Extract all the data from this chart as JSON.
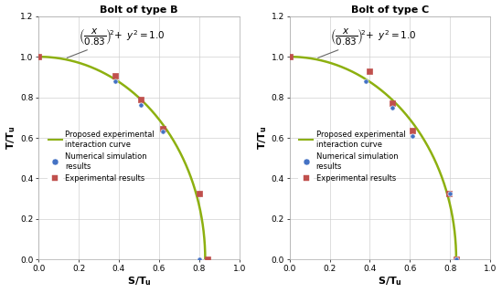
{
  "title_B": "Bolt of type B",
  "title_C": "Bolt of type C",
  "xlabel": "S/T$_\\mathbf{u}$",
  "ylabel": "T/T$_\\mathbf{u}$",
  "equation_param": 0.83,
  "xlim": [
    0,
    1.0
  ],
  "ylim": [
    0,
    1.2
  ],
  "xticks": [
    0,
    0.2,
    0.4,
    0.6,
    0.8,
    1.0
  ],
  "yticks": [
    0,
    0.2,
    0.4,
    0.6,
    0.8,
    1.0,
    1.2
  ],
  "curve_color": "#8db010",
  "numerical_color": "#4472C4",
  "experimental_color": "#C0504D",
  "numerical_B": [
    [
      0.38,
      0.88
    ],
    [
      0.51,
      0.76
    ],
    [
      0.62,
      0.63
    ],
    [
      0.8,
      0.0
    ]
  ],
  "experimental_B": [
    [
      0.0,
      1.0
    ],
    [
      0.38,
      0.905
    ],
    [
      0.51,
      0.79
    ],
    [
      0.62,
      0.645
    ],
    [
      0.8,
      0.325
    ],
    [
      0.84,
      0.0
    ]
  ],
  "numerical_C": [
    [
      0.38,
      0.88
    ],
    [
      0.51,
      0.75
    ],
    [
      0.61,
      0.61
    ],
    [
      0.8,
      0.325
    ],
    [
      0.83,
      0.0
    ]
  ],
  "experimental_C": [
    [
      0.0,
      1.0
    ],
    [
      0.4,
      0.93
    ],
    [
      0.51,
      0.77
    ],
    [
      0.61,
      0.635
    ],
    [
      0.795,
      0.325
    ],
    [
      0.83,
      0.0
    ]
  ],
  "legend_curve": "Proposed experimental\ninteraction curve",
  "legend_numerical": "Numerical simulation\nresults",
  "legend_experimental": "Experimental results",
  "background_color": "#ffffff",
  "grid_color": "#d0d0d0",
  "figsize": [
    5.49,
    3.21
  ],
  "dpi": 100
}
